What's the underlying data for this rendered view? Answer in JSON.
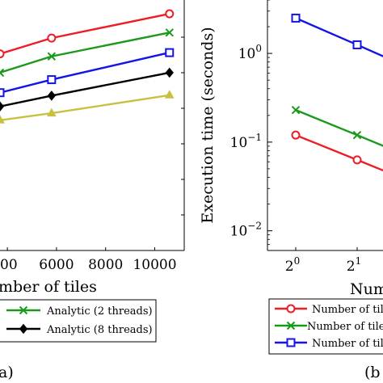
{
  "chart_data": [
    {
      "type": "line",
      "xlabel": "Number of tiles",
      "xlabel_visible": "mber of tiles",
      "ylabel": "",
      "xlim": [
        3700,
        11200
      ],
      "ylim": [
        0,
        1
      ],
      "x_ticks": [
        4000,
        6000,
        8000,
        10000
      ],
      "x_tick_labels_visible": [
        "00",
        "6000",
        "8000",
        "10000"
      ],
      "grid": false,
      "caption_visible": "a)",
      "series": [
        {
          "name": "",
          "color": "#ee1c24",
          "marker": "circle-open",
          "x": [
            3700,
            5800,
            10600
          ],
          "y": [
            0.785,
            0.848,
            0.945
          ]
        },
        {
          "name": "Analytic (2 threads)",
          "color": "#1a9a1a",
          "marker": "x",
          "x": [
            3700,
            5800,
            10600
          ],
          "y": [
            0.71,
            0.775,
            0.87
          ]
        },
        {
          "name": "",
          "color": "#1414e6",
          "marker": "square-open",
          "x": [
            3700,
            5800,
            10600
          ],
          "y": [
            0.63,
            0.682,
            0.79
          ]
        },
        {
          "name": "Analytic (8 threads)",
          "color": "#000000",
          "marker": "diamond",
          "x": [
            3700,
            5800,
            10600
          ],
          "y": [
            0.575,
            0.618,
            0.71
          ]
        },
        {
          "name": "",
          "color": "#c8c040",
          "marker": "triangle",
          "x": [
            3700,
            5800,
            10600
          ],
          "y": [
            0.52,
            0.548,
            0.62
          ]
        }
      ],
      "legend": {
        "placement": "bottom",
        "entries": [
          {
            "label": "Analytic (2 threads)",
            "color": "#1a9a1a",
            "marker": "x"
          },
          {
            "label": "Analytic (8 threads)",
            "color": "#000000",
            "marker": "diamond"
          }
        ]
      }
    },
    {
      "type": "line",
      "xlabel": "Num",
      "ylabel": "Execution time (seconds)",
      "y_scale": "log",
      "x_scale": "log2",
      "ylim": [
        0.006,
        4
      ],
      "y_ticks": [
        0.01,
        0.1,
        1
      ],
      "y_tick_labels": [
        {
          "base": "10",
          "exp": "−2"
        },
        {
          "base": "10",
          "exp": "−1"
        },
        {
          "base": "10",
          "exp": "0"
        }
      ],
      "x_ticks": [
        1,
        2
      ],
      "x_tick_labels": [
        {
          "base": "2",
          "exp": "0"
        },
        {
          "base": "2",
          "exp": "1"
        }
      ],
      "grid": false,
      "caption_visible": "(b",
      "series": [
        {
          "name": "Number of til",
          "color": "#ee1c24",
          "marker": "circle-open",
          "x": [
            1,
            2,
            4
          ],
          "y": [
            0.12,
            0.063,
            0.033
          ]
        },
        {
          "name": "Number of tiles",
          "color": "#1a9a1a",
          "marker": "x",
          "x": [
            1,
            2,
            4
          ],
          "y": [
            0.23,
            0.12,
            0.062
          ]
        },
        {
          "name": "Number of tile",
          "color": "#1414e6",
          "marker": "square-open",
          "x": [
            1,
            2,
            4
          ],
          "y": [
            2.5,
            1.25,
            0.62
          ]
        }
      ],
      "legend": {
        "placement": "bottom",
        "entries": [
          {
            "label": "Number of til",
            "color": "#ee1c24",
            "marker": "circle-open"
          },
          {
            "label": "Number of tiles",
            "color": "#1a9a1a",
            "marker": "x"
          },
          {
            "label": "Number of tile",
            "color": "#1414e6",
            "marker": "square-open"
          }
        ]
      }
    }
  ]
}
